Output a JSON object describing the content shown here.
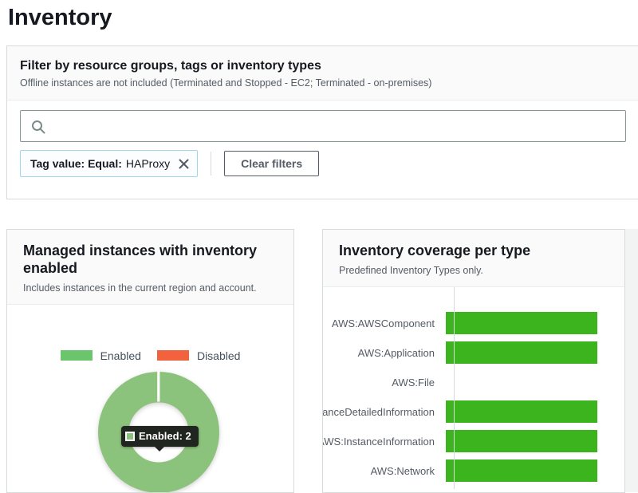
{
  "page": {
    "title": "Inventory"
  },
  "colors": {
    "bar_green": "#3cb41e",
    "donut_green": "#8cc37c",
    "legend_enabled_green": "#6bc56d",
    "disabled_orange": "#f3623e",
    "tooltip_bg": "#20261f",
    "token_border": "#9fd8ee",
    "token_bg": "#fbfdff",
    "card_header_bg": "#fafafa",
    "border_light": "#d5dbdb",
    "text_gray": "#545b64"
  },
  "filter_panel": {
    "title": "Filter by resource groups, tags or inventory types",
    "subtitle": "Offline instances are not included (Terminated and Stopped - EC2; Terminated - on-premises)",
    "search": {
      "value": "",
      "icon": "search-icon"
    },
    "token": {
      "label": "Tag value: Equal:",
      "value": "HAProxy",
      "remove_icon": "close-icon"
    },
    "clear_button_label": "Clear filters"
  },
  "cards": {
    "instances": {
      "title": "Managed instances with inventory enabled",
      "subtitle": "Includes instances in the current region and account."
    },
    "coverage": {
      "title": "Inventory coverage per type",
      "subtitle": "Predefined Inventory Types only."
    }
  },
  "chart_data": [
    {
      "type": "pie",
      "title": "Managed instances with inventory enabled",
      "labels": [
        "Enabled",
        "Disabled"
      ],
      "values": [
        2,
        0
      ],
      "legend_colors": [
        "#6bc56d",
        "#f3623e"
      ],
      "donut_color": "#8cc37c",
      "legend_position": "top",
      "annotation": "Enabled: 2"
    },
    {
      "type": "bar",
      "title": "Inventory coverage per type",
      "orientation": "horizontal",
      "categories": [
        "AWS:AWSComponent",
        "AWS:Application",
        "AWS:File",
        "AWS:InstanceDetailedInformation",
        "AWS:InstanceInformation",
        "AWS:Network"
      ],
      "values_percent": [
        100,
        100,
        0,
        100,
        100,
        100
      ],
      "bar_color": "#3cb41e",
      "xlim": [
        0,
        100
      ],
      "grid": false,
      "legend": false
    }
  ]
}
